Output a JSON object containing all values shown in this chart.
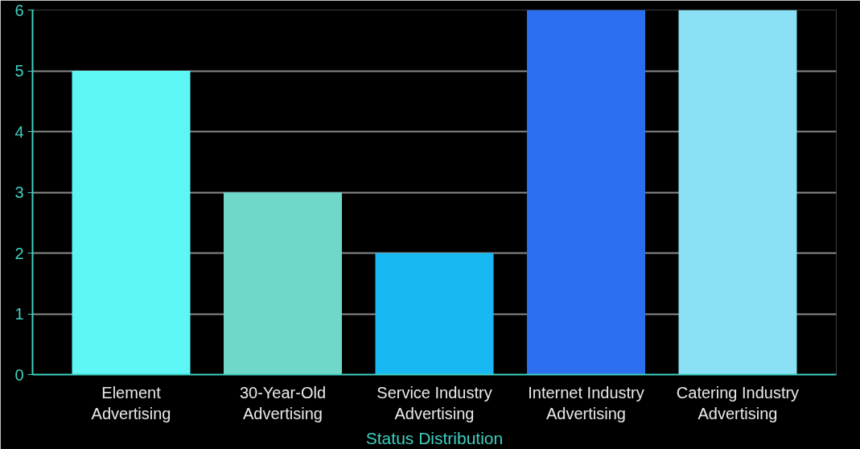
{
  "chart_data": {
    "type": "bar",
    "xlabel": "Status Distribution",
    "categories": [
      "Element Advertising",
      "30-Year-Old Advertising",
      "Service Industry Advertising",
      "Internet Industry Advertising",
      "Catering Industry Advertising"
    ],
    "values": [
      5,
      3,
      2,
      6,
      6
    ],
    "colors": [
      "#5ef5f5",
      "#6fd8c8",
      "#18b8f5",
      "#2b6ef0",
      "#8ae0f5"
    ],
    "ylim": [
      0,
      6
    ],
    "yticks": [
      0,
      1,
      2,
      3,
      4,
      5,
      6
    ],
    "grid": "y"
  }
}
